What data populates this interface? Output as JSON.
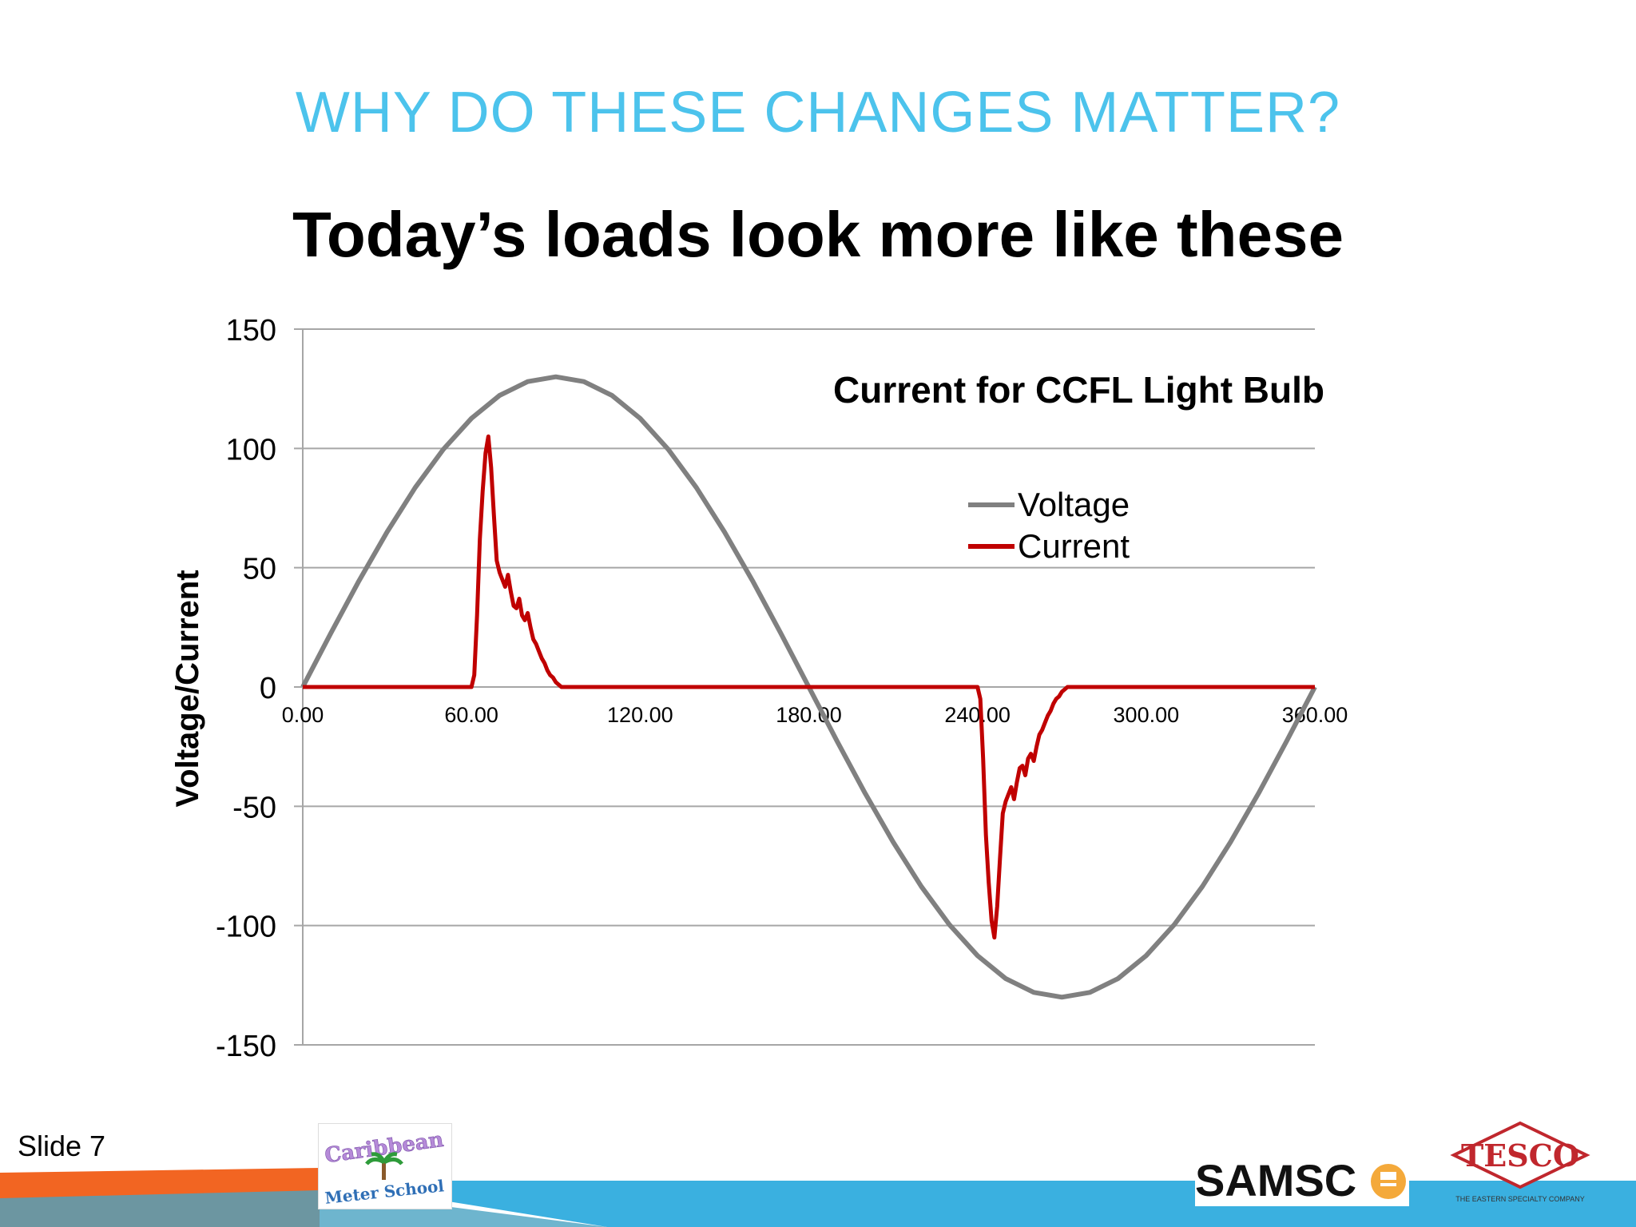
{
  "slide": {
    "title": "WHY DO THESE CHANGES MATTER?",
    "subtitle": "Today’s loads look more like these",
    "number_label": "Slide 7"
  },
  "logos": {
    "caribbean_line1": "Caribbean",
    "caribbean_line2": "Meter School",
    "samsco": "SAMSC",
    "tesco": "TESCO",
    "tesco_tagline": "THE EASTERN SPECIALTY COMPANY"
  },
  "colors": {
    "title": "#4cc3ec",
    "voltage": "#808080",
    "current": "#c00000",
    "gridline": "#a6a6a6",
    "footer_blue": "#3ab0e0",
    "footer_orange": "#f26522"
  },
  "chart_data": {
    "type": "line",
    "title": "Current for CCFL Light Bulb",
    "xlabel": "",
    "ylabel": "Voltage/Current",
    "xlim": [
      0,
      360
    ],
    "ylim": [
      -150,
      150
    ],
    "x_ticks": [
      "0.00",
      "60.00",
      "120.00",
      "180.00",
      "240.00",
      "300.00",
      "360.00"
    ],
    "y_ticks": [
      "150",
      "100",
      "50",
      "0",
      "-50",
      "-100",
      "-150"
    ],
    "grid": "horizontal",
    "legend_position": "top-right",
    "series": [
      {
        "name": "Voltage",
        "x": [
          0,
          10,
          20,
          30,
          40,
          50,
          60,
          70,
          80,
          90,
          100,
          110,
          120,
          130,
          140,
          150,
          160,
          170,
          180,
          190,
          200,
          210,
          220,
          230,
          240,
          250,
          260,
          270,
          280,
          290,
          300,
          310,
          320,
          330,
          340,
          350,
          360
        ],
        "y": [
          0,
          22.6,
          44.5,
          65,
          83.6,
          99.6,
          112.6,
          122.2,
          128,
          130,
          128,
          122.2,
          112.6,
          99.6,
          83.6,
          65,
          44.5,
          22.6,
          0,
          -22.6,
          -44.5,
          -65,
          -83.6,
          -99.6,
          -112.6,
          -122.2,
          -128,
          -130,
          -128,
          -122.2,
          -112.6,
          -99.6,
          -83.6,
          -65,
          -44.5,
          -22.6,
          0
        ]
      },
      {
        "name": "Current",
        "x": [
          0,
          60,
          61,
          62,
          63,
          64,
          65,
          66,
          67,
          68,
          69,
          70,
          71,
          72,
          73,
          74,
          75,
          76,
          77,
          78,
          79,
          80,
          81,
          82,
          83,
          84,
          85,
          86,
          87,
          88,
          89,
          90,
          92,
          94,
          96,
          120,
          180,
          240,
          241,
          242,
          243,
          244,
          245,
          246,
          247,
          248,
          249,
          250,
          251,
          252,
          253,
          254,
          255,
          256,
          257,
          258,
          259,
          260,
          261,
          262,
          263,
          264,
          265,
          266,
          267,
          268,
          269,
          270,
          272,
          274,
          276,
          300,
          360
        ],
        "y": [
          0,
          0,
          5,
          30,
          62,
          82,
          98,
          105,
          92,
          72,
          53,
          48,
          45,
          42,
          47,
          40,
          34,
          33,
          37,
          30,
          28,
          31,
          25,
          20,
          18,
          15,
          12,
          10,
          7,
          5,
          4,
          2,
          0,
          0,
          0,
          0,
          0,
          0,
          -5,
          -30,
          -62,
          -82,
          -98,
          -105,
          -92,
          -72,
          -53,
          -48,
          -45,
          -42,
          -47,
          -40,
          -34,
          -33,
          -37,
          -30,
          -28,
          -31,
          -25,
          -20,
          -18,
          -15,
          -12,
          -10,
          -7,
          -5,
          -4,
          -2,
          0,
          0,
          0,
          0,
          0
        ]
      }
    ]
  }
}
